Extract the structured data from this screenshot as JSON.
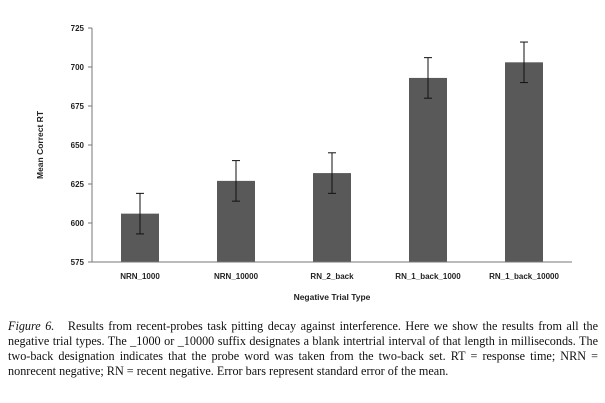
{
  "chart_data": {
    "type": "bar",
    "categories": [
      "NRN_1000",
      "NRN_10000",
      "RN_2_back",
      "RN_1_back_1000",
      "RN_1_back_10000"
    ],
    "values": [
      606,
      627,
      632,
      693,
      703
    ],
    "error": [
      13,
      13,
      13,
      13,
      13
    ],
    "xlabel": "Negative Trial Type",
    "ylabel": "Mean Correct RT",
    "ylim": [
      575,
      725
    ],
    "yticks": [
      575,
      600,
      625,
      650,
      675,
      700,
      725
    ],
    "grid": false,
    "bar_color": "#595959"
  },
  "caption": {
    "label": "Figure 6.",
    "text": "Results from recent-probes task pitting decay against interference. Here we show the results from all the negative trial types. The _1000 or _10000 suffix designates a blank intertrial interval of that length in milliseconds. The two-back designation indicates that the probe word was taken from the two-back set. RT = response time; NRN = nonrecent negative; RN = recent negative. Error bars represent standard error of the mean."
  }
}
